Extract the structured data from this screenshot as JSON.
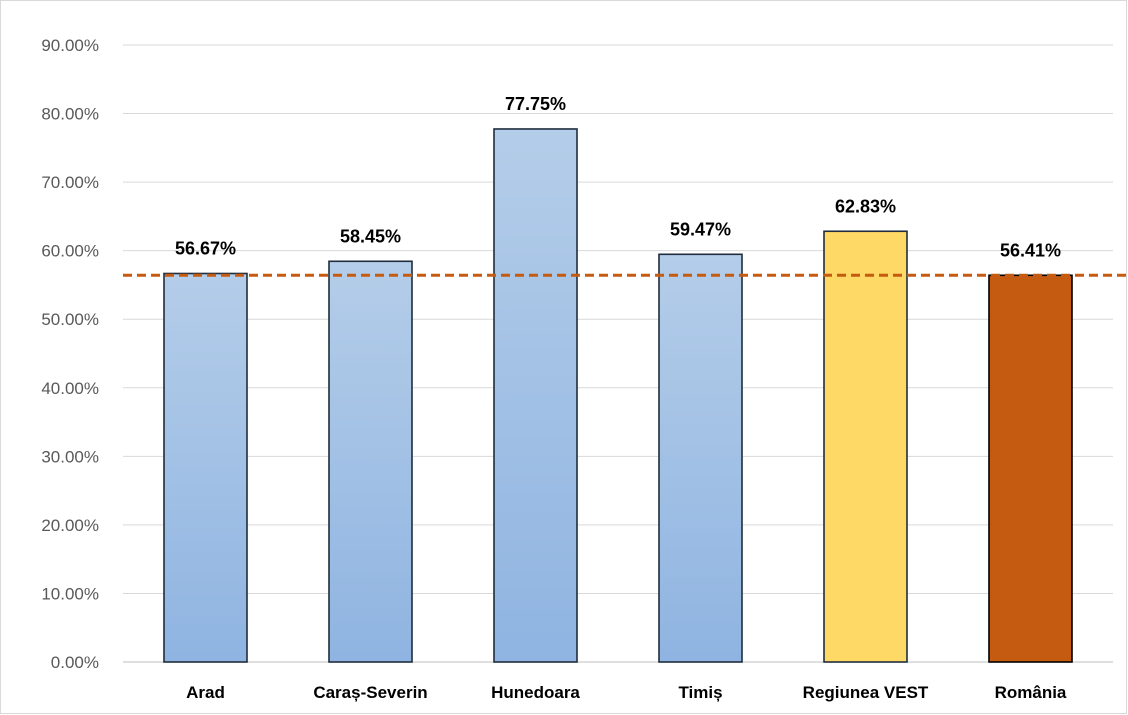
{
  "chart_data": {
    "type": "bar",
    "title": "",
    "xlabel": "",
    "ylabel": "",
    "ylim": [
      0,
      0.9
    ],
    "y_tick_step": 0.1,
    "y_tick_format": "percent-2dp",
    "y_ticks": [
      "0.00%",
      "10.00%",
      "20.00%",
      "30.00%",
      "40.00%",
      "50.00%",
      "60.00%",
      "70.00%",
      "80.00%",
      "90.00%"
    ],
    "grid": true,
    "legend": "none",
    "categories": [
      "Arad",
      "Caraș-Severin",
      "Hunedoara",
      "Timiș",
      "Regiunea VEST",
      "România"
    ],
    "values": [
      0.5667,
      0.5845,
      0.7775,
      0.5947,
      0.6283,
      0.5641
    ],
    "data_labels": [
      "56.67%",
      "58.45%",
      "77.75%",
      "59.47%",
      "62.83%",
      "56.41%"
    ],
    "bar_colors": [
      "#9dbde3",
      "#9dbde3",
      "#9dbde3",
      "#9dbde3",
      "#ffd966",
      "#c55a11"
    ],
    "bar_style": [
      "gradient-blue",
      "gradient-blue",
      "gradient-blue",
      "gradient-blue",
      "solid",
      "solid"
    ],
    "reference_line": {
      "value": 0.5641,
      "style": "dashed",
      "color": "#c55a11"
    }
  },
  "colors": {
    "gridline": "#d9d9d9",
    "axis_line": "#bfbfbf",
    "bar_outline": "#1f2d3d",
    "gradient_top": "#b4cde9",
    "gradient_bottom": "#8fb4e1"
  }
}
